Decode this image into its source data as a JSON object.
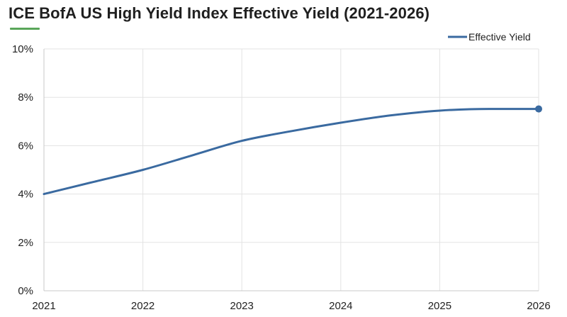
{
  "colors": {
    "accent": "#5aa65a",
    "series": "#3a6aa0",
    "grid": "#e3e3e3",
    "axis": "#c8c8c8"
  },
  "chart_data": {
    "type": "line",
    "title": "ICE BofA US High Yield Index Effective Yield (2021-2026)",
    "xlabel": "",
    "ylabel": "",
    "x": [
      2021,
      2021.5,
      2022,
      2022.5,
      2023,
      2023.5,
      2024,
      2024.5,
      2025,
      2025.5,
      2026
    ],
    "series": [
      {
        "name": "Effective Yield",
        "values": [
          4.0,
          4.5,
          5.0,
          5.6,
          6.2,
          6.6,
          6.95,
          7.25,
          7.45,
          7.52,
          7.52
        ]
      }
    ],
    "x_ticks": [
      2021,
      2022,
      2023,
      2024,
      2025,
      2026
    ],
    "x_tick_labels": [
      "2021",
      "2022",
      "2023",
      "2024",
      "2025",
      "2026"
    ],
    "y_ticks": [
      0,
      2,
      4,
      6,
      8,
      10
    ],
    "y_tick_labels": [
      "0%",
      "2%",
      "4%",
      "6%",
      "8%",
      "10%"
    ],
    "xlim": [
      2021,
      2026
    ],
    "ylim": [
      0,
      10
    ],
    "grid": true,
    "legend_position": "top-right",
    "end_marker": true
  }
}
